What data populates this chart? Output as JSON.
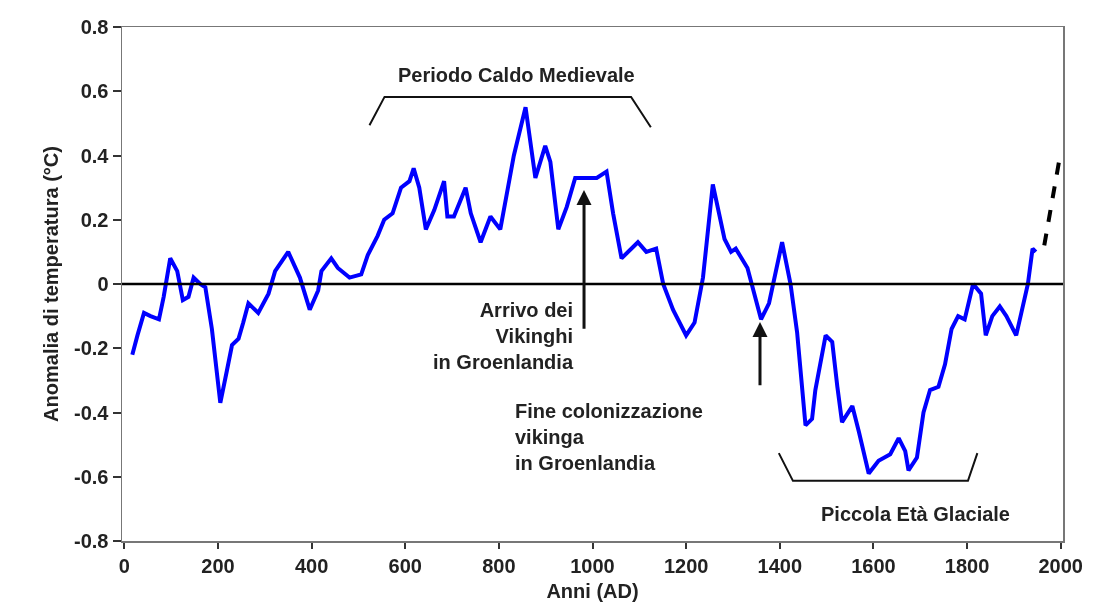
{
  "chart_data": {
    "type": "line",
    "xlabel": "Anni (AD)",
    "ylabel": "Anomalia di temperatura (°C)",
    "xlim": [
      -5,
      2005
    ],
    "xticks": [
      0,
      200,
      400,
      600,
      800,
      1000,
      1200,
      1400,
      1600,
      1800,
      2000
    ],
    "ylim": [
      -0.8,
      0.8
    ],
    "yticks": [
      -0.8,
      -0.6,
      -0.4,
      -0.2,
      0,
      0.2,
      0.4,
      0.6,
      0.8
    ],
    "grid": false,
    "marker": "none",
    "series": [
      {
        "color": "#0000ff",
        "line_style": "solid",
        "x": [
          17,
          28,
          42,
          56,
          74,
          84,
          98,
          113,
          125,
          137,
          148,
          162,
          173,
          187,
          205,
          219,
          230,
          244,
          254,
          265,
          286,
          308,
          322,
          350,
          375,
          396,
          414,
          421,
          442,
          456,
          481,
          506,
          520,
          541,
          555,
          573,
          591,
          609,
          618,
          630,
          644,
          662,
          683,
          690,
          704,
          729,
          740,
          761,
          782,
          803,
          832,
          857,
          878,
          899,
          910,
          927,
          945,
          963,
          988,
          1009,
          1030,
          1044,
          1062,
          1097,
          1115,
          1136,
          1151,
          1172,
          1200,
          1218,
          1236,
          1257,
          1282,
          1296,
          1306,
          1331,
          1360,
          1377,
          1405,
          1423,
          1437,
          1455,
          1469,
          1476,
          1498,
          1512,
          1523,
          1533,
          1555,
          1569,
          1590,
          1611,
          1636,
          1654,
          1668,
          1675,
          1693,
          1707,
          1721,
          1739,
          1753,
          1767,
          1781,
          1795,
          1813,
          1830,
          1840,
          1854,
          1870,
          1884,
          1905,
          1916,
          1930,
          1940,
          1947
        ],
        "values": [
          -0.22,
          -0.16,
          -0.09,
          -0.1,
          -0.11,
          -0.04,
          0.08,
          0.04,
          -0.05,
          -0.04,
          0.02,
          0,
          -0.01,
          -0.14,
          -0.37,
          -0.27,
          -0.19,
          -0.17,
          -0.12,
          -0.06,
          -0.09,
          -0.03,
          0.04,
          0.1,
          0.02,
          -0.08,
          -0.02,
          0.04,
          0.08,
          0.05,
          0.02,
          0.03,
          0.09,
          0.15,
          0.2,
          0.22,
          0.3,
          0.32,
          0.36,
          0.3,
          0.17,
          0.23,
          0.32,
          0.21,
          0.21,
          0.3,
          0.22,
          0.13,
          0.21,
          0.17,
          0.4,
          0.55,
          0.33,
          0.43,
          0.38,
          0.17,
          0.24,
          0.33,
          0.33,
          0.33,
          0.35,
          0.22,
          0.08,
          0.13,
          0.1,
          0.11,
          0,
          -0.08,
          -0.16,
          -0.12,
          0.02,
          0.31,
          0.14,
          0.1,
          0.11,
          0.05,
          -0.11,
          -0.06,
          0.13,
          0,
          -0.15,
          -0.44,
          -0.42,
          -0.33,
          -0.16,
          -0.18,
          -0.32,
          -0.43,
          -0.38,
          -0.46,
          -0.59,
          -0.55,
          -0.53,
          -0.48,
          -0.52,
          -0.58,
          -0.54,
          -0.4,
          -0.33,
          -0.32,
          -0.25,
          -0.14,
          -0.1,
          -0.11,
          0,
          -0.03,
          -0.16,
          -0.1,
          -0.07,
          -0.1,
          -0.16,
          -0.09,
          0,
          0.11,
          0.1
        ]
      },
      {
        "color": "#000000",
        "line_style": "dashed",
        "x": [
          1965,
          2000
        ],
        "values": [
          0.12,
          0.41
        ]
      }
    ],
    "ref_lines": [
      {
        "axis": "y",
        "value": 0,
        "color": "#000000"
      }
    ],
    "annotations": [
      "Periodo Caldo Medievale",
      "Arrivo dei\nVikinghi\nin Groenlandia",
      "Fine colonizzazione\nvikinga\nin Groenlandia",
      "Piccola Età Glaciale"
    ]
  }
}
